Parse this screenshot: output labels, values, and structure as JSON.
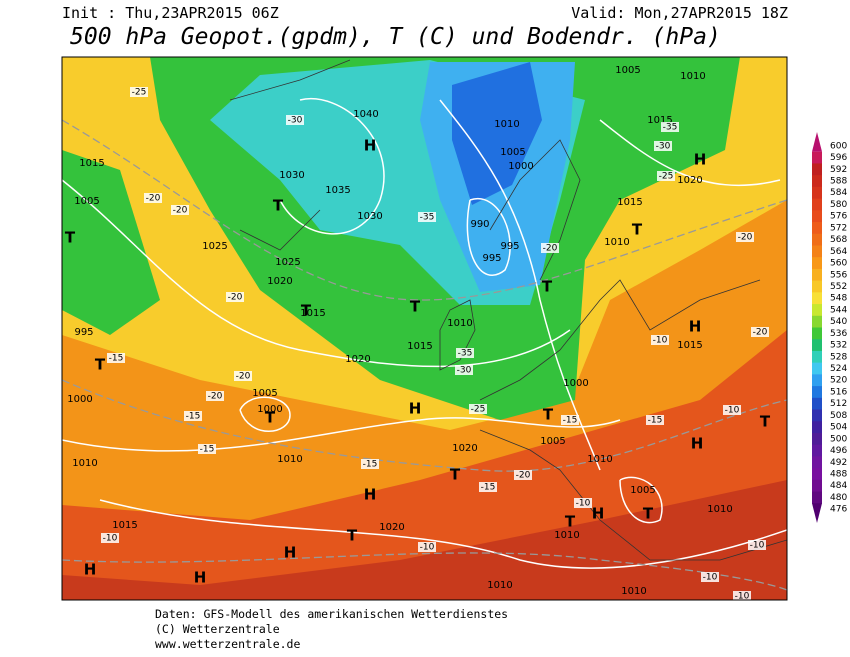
{
  "header": {
    "init": "Init : Thu,23APR2015 06Z",
    "valid": "Valid: Mon,27APR2015 18Z",
    "title": "500 hPa Geopot.(gpdm), T (C) und Bodendr. (hPa)"
  },
  "colorbar": {
    "values": [
      600,
      596,
      592,
      588,
      584,
      580,
      576,
      572,
      568,
      564,
      560,
      556,
      552,
      548,
      544,
      540,
      536,
      532,
      528,
      524,
      520,
      516,
      512,
      508,
      504,
      500,
      496,
      492,
      488,
      484,
      480,
      476
    ],
    "colors": [
      "#b8106e",
      "#c81a5a",
      "#c02020",
      "#cc2a1c",
      "#d6341c",
      "#e0401c",
      "#e84c1c",
      "#ee5c1a",
      "#f06e18",
      "#f48218",
      "#f89818",
      "#f8b020",
      "#f8c828",
      "#f8e038",
      "#c8e830",
      "#88d830",
      "#40c838",
      "#20c070",
      "#30d0b8",
      "#40c8f0",
      "#30a0f0",
      "#2078e0",
      "#2050c8",
      "#3030b0",
      "#4020a0",
      "#501c98",
      "#6018a0",
      "#7014a0",
      "#7810a0",
      "#700c90",
      "#600880",
      "#500070"
    ]
  },
  "isobar_labels": [
    "1005",
    "1010",
    "1040",
    "1015",
    "1010",
    "1030",
    "1035",
    "1030",
    "1005",
    "1000",
    "990",
    "995",
    "995",
    "1025",
    "1020",
    "1015",
    "1010",
    "1015",
    "1020",
    "1000",
    "1000",
    "1005",
    "1010",
    "1020",
    "1005",
    "1010",
    "1005",
    "1010",
    "1010",
    "1015",
    "1020",
    "1010",
    "1010",
    "1015",
    "1005",
    "1025",
    "995",
    "1000",
    "1010",
    "1015",
    "1010",
    "1015",
    "1020"
  ],
  "high_markers": [
    "H",
    "H",
    "H",
    "H",
    "H",
    "H",
    "H",
    "H",
    "H",
    "H"
  ],
  "low_markers": [
    "T",
    "T",
    "T",
    "T",
    "T",
    "T",
    "T",
    "T",
    "T",
    "T",
    "T",
    "T",
    "T",
    "T"
  ],
  "temperature_labels": [
    "-25",
    "-30",
    "-35",
    "-30",
    "-25",
    "-35",
    "-20",
    "-20",
    "-20",
    "-20",
    "-15",
    "-20",
    "-20",
    "-15",
    "-15",
    "-15",
    "-15",
    "-20",
    "-15",
    "-10",
    "-10",
    "-10",
    "-10",
    "-10",
    "-10",
    "-10",
    "-10",
    "-35",
    "-30",
    "-25",
    "-20",
    "-20",
    "-15"
  ],
  "footer": [
    "Daten: GFS-Modell des amerikanischen Wetterdienstes",
    "(C) Wetterzentrale",
    "www.wetterzentrale.de"
  ]
}
